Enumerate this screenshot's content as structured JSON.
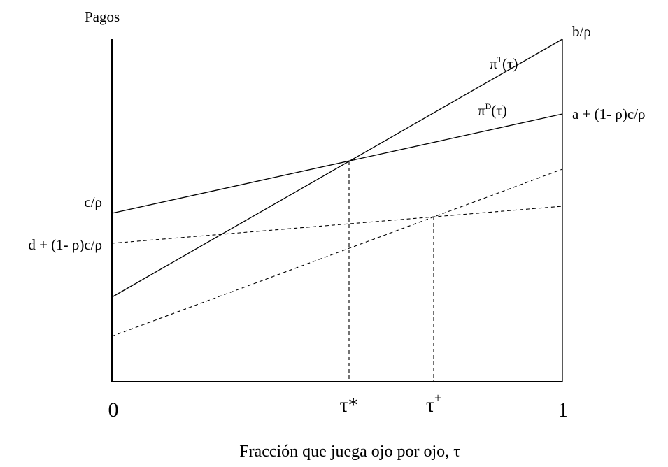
{
  "labels": {
    "y_axis_title": "Pagos",
    "x_axis_title": "Fracción que juega ojo por ojo, τ",
    "tick_zero": "0",
    "tick_one": "1",
    "tau_star": "τ*",
    "tau_plus_base": "τ",
    "tau_plus_sup": "+",
    "right_top": "b/ρ",
    "right_mid": "a + (1- ρ)c/ρ",
    "left_top": "c/ρ",
    "left_bottom": "d + (1- ρ)c/ρ",
    "pi_t_base": "π",
    "pi_t_sup": "T",
    "pi_t_arg": "(τ)",
    "pi_d_base": "π",
    "pi_d_sup": "D",
    "pi_d_arg": "(τ)"
  }
}
